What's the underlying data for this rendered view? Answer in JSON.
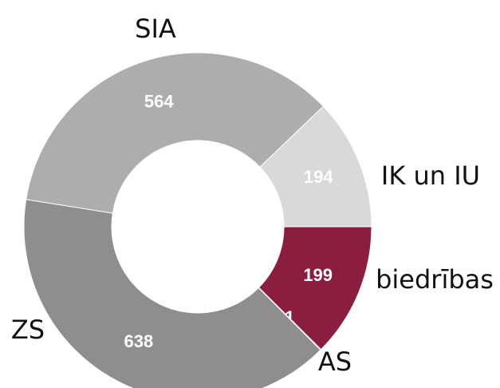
{
  "chart_data": {
    "type": "donut",
    "categories": [
      "SIA",
      "IK un IU",
      "biedrības",
      "AS",
      "ZS"
    ],
    "values": [
      564,
      194,
      199,
      1,
      638
    ],
    "colors": [
      "#adadad",
      "#d9d9d9",
      "#8b1e3f",
      "#7a7a7a",
      "#8e8e8e"
    ]
  }
}
